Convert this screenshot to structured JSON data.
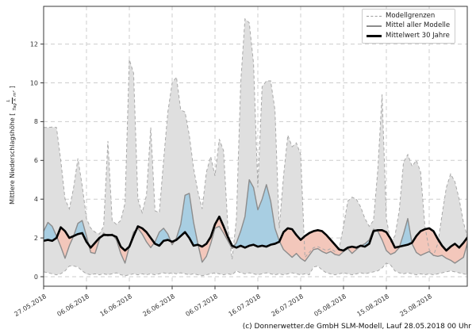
{
  "figure": {
    "legend": {
      "items": [
        {
          "label": "Modellgrenzen",
          "style": "dashed-gray"
        },
        {
          "label": "Mittel aller Modelle",
          "style": "solid-gray"
        },
        {
          "label": "Mittelwert 30 Jahre",
          "style": "solid-black"
        }
      ]
    },
    "y_axis_label": {
      "prefix": "Mittlere Niederschlagshöhe [",
      "unit_numerator": "L",
      "unit_denominator": "Tag × m²",
      "suffix": "]"
    },
    "footer": "(c) Donnerwetter.de GmbH SLM-Modell, Lauf 28.05.2018 00 Uhr",
    "colors": {
      "band_fill": "#dfdfdf",
      "band_edge": "#a9a9a9",
      "grid": "#cdcdcd",
      "mean_line": "#8c8c8c",
      "mean30_line": "#000000",
      "above_fill": "#a8cee2",
      "below_fill": "#f3c7bb",
      "spine": "#3a3a3a",
      "tick_text": "#333333"
    }
  },
  "chart_data": {
    "type": "line",
    "title": "",
    "xlabel": "",
    "ylabel": "Mittlere Niederschlagshöhe [L/(Tag × m²)]",
    "grid": true,
    "legend_position": "upper right",
    "ylim": [
      -0.49,
      13.95
    ],
    "y_ticks": [
      0,
      2,
      4,
      6,
      8,
      10,
      12
    ],
    "x_tick_days": [
      0,
      10,
      20,
      30,
      40,
      50,
      60,
      70,
      80,
      90
    ],
    "x_tick_labels": [
      "27.05.2018",
      "06.06.2018",
      "16.06.2018",
      "26.06.2018",
      "06.07.2018",
      "16.07.2018",
      "26.07.2018",
      "05.08.2018",
      "15.08.2018",
      "25.08.2018"
    ],
    "x_start_date": "27.05.2018",
    "x_days_total": 99,
    "series": [
      {
        "name": "Modellgrenzen (Maximum)",
        "values": [
          7.7,
          7.7,
          7.72,
          7.7,
          6.0,
          4.0,
          3.5,
          4.6,
          6.1,
          4.7,
          3.0,
          2.5,
          2.3,
          2.2,
          2.6,
          7.0,
          2.9,
          2.7,
          2.9,
          3.8,
          11.2,
          10.5,
          4.0,
          3.3,
          4.2,
          7.7,
          3.4,
          3.3,
          6.0,
          8.5,
          10.0,
          10.3,
          8.6,
          8.5,
          7.3,
          5.6,
          4.4,
          3.5,
          5.4,
          6.2,
          5.2,
          7.1,
          6.5,
          2.6,
          0.9,
          3.0,
          10.0,
          13.3,
          13.1,
          11.0,
          4.6,
          9.8,
          10.1,
          10.1,
          8.6,
          2.5,
          5.2,
          7.3,
          6.7,
          6.9,
          6.3,
          1.0,
          1.25,
          1.5,
          1.55,
          1.45,
          1.35,
          1.45,
          1.3,
          1.5,
          2.6,
          3.9,
          4.1,
          4.0,
          3.6,
          3.0,
          2.6,
          2.9,
          5.5,
          9.4,
          3.0,
          1.8,
          2.1,
          3.4,
          5.9,
          6.3,
          5.7,
          6.0,
          5.4,
          2.6,
          1.4,
          1.1,
          1.7,
          3.2,
          4.6,
          5.3,
          4.9,
          4.0,
          2.8,
          2.0
        ]
      },
      {
        "name": "Modellgrenzen (Minimum)",
        "values": [
          0.25,
          0.2,
          0.15,
          0.1,
          0.15,
          0.3,
          0.55,
          0.55,
          0.5,
          0.3,
          0.15,
          0.1,
          0.15,
          0.1,
          0.15,
          0.1,
          0.15,
          0.2,
          0.1,
          0.05,
          0.1,
          0.15,
          0.1,
          0.15,
          0.1,
          0.15,
          0.1,
          0.15,
          0.2,
          0.15,
          0.2,
          0.15,
          0.2,
          0.15,
          0.1,
          0.15,
          0.1,
          0.05,
          0.1,
          0.15,
          0.2,
          0.15,
          0.1,
          0.15,
          0.1,
          0.3,
          0.2,
          0.15,
          0.2,
          0.15,
          0.1,
          0.15,
          0.2,
          0.15,
          0.1,
          0.15,
          0.1,
          0.15,
          0.2,
          0.15,
          0.1,
          0.15,
          0.1,
          0.5,
          0.55,
          0.35,
          0.2,
          0.15,
          0.1,
          0.15,
          0.2,
          0.15,
          0.1,
          0.15,
          0.2,
          0.15,
          0.2,
          0.25,
          0.3,
          0.45,
          0.7,
          0.6,
          0.3,
          0.2,
          0.15,
          0.2,
          0.15,
          0.1,
          0.15,
          0.1,
          0.15,
          0.1,
          0.15,
          0.2,
          0.25,
          0.3,
          0.25,
          0.2,
          0.15,
          0.1
        ]
      },
      {
        "name": "Mittel aller Modelle",
        "values": [
          2.35,
          2.8,
          2.6,
          2.1,
          1.55,
          0.95,
          1.6,
          2.1,
          2.75,
          2.9,
          2.1,
          1.25,
          1.2,
          1.9,
          2.25,
          2.1,
          2.2,
          1.9,
          1.2,
          0.7,
          1.55,
          2.3,
          2.5,
          2.2,
          1.8,
          1.5,
          1.8,
          2.3,
          2.5,
          2.2,
          1.65,
          2.0,
          2.7,
          4.2,
          4.3,
          2.8,
          1.7,
          0.75,
          1.05,
          1.7,
          2.5,
          2.6,
          2.25,
          1.85,
          1.45,
          1.75,
          2.35,
          3.1,
          5.0,
          4.6,
          3.45,
          4.0,
          4.75,
          3.9,
          2.5,
          1.85,
          1.4,
          1.2,
          1.0,
          1.2,
          0.95,
          0.8,
          1.1,
          1.4,
          1.45,
          1.3,
          1.2,
          1.3,
          1.15,
          1.1,
          1.3,
          1.45,
          1.2,
          1.4,
          1.6,
          1.7,
          1.9,
          2.45,
          2.35,
          1.9,
          1.35,
          1.15,
          1.25,
          1.5,
          2.2,
          3.0,
          1.7,
          1.25,
          1.1,
          1.2,
          1.3,
          1.1,
          1.05,
          1.1,
          0.95,
          0.85,
          0.7,
          0.85,
          1.0,
          1.8
        ]
      },
      {
        "name": "Mittelwert 30 Jahre",
        "values": [
          1.85,
          1.9,
          1.85,
          2.0,
          2.55,
          2.35,
          2.0,
          2.1,
          2.2,
          2.25,
          1.8,
          1.5,
          1.75,
          2.0,
          2.15,
          2.15,
          2.15,
          2.05,
          1.55,
          1.35,
          1.55,
          2.1,
          2.6,
          2.5,
          2.3,
          2.0,
          1.7,
          1.6,
          1.85,
          1.9,
          1.8,
          1.9,
          2.1,
          2.3,
          2.0,
          1.6,
          1.65,
          1.55,
          1.7,
          2.05,
          2.7,
          3.1,
          2.6,
          2.05,
          1.6,
          1.5,
          1.6,
          1.5,
          1.6,
          1.65,
          1.55,
          1.6,
          1.55,
          1.65,
          1.7,
          1.8,
          2.3,
          2.5,
          2.45,
          2.15,
          1.9,
          2.1,
          2.25,
          2.35,
          2.4,
          2.35,
          2.15,
          1.9,
          1.65,
          1.4,
          1.35,
          1.5,
          1.55,
          1.5,
          1.6,
          1.55,
          1.7,
          2.35,
          2.4,
          2.4,
          2.3,
          1.95,
          1.5,
          1.55,
          1.6,
          1.65,
          1.75,
          2.1,
          2.35,
          2.45,
          2.5,
          2.35,
          1.95,
          1.6,
          1.35,
          1.55,
          1.7,
          1.5,
          1.75,
          2.05
        ]
      }
    ]
  }
}
